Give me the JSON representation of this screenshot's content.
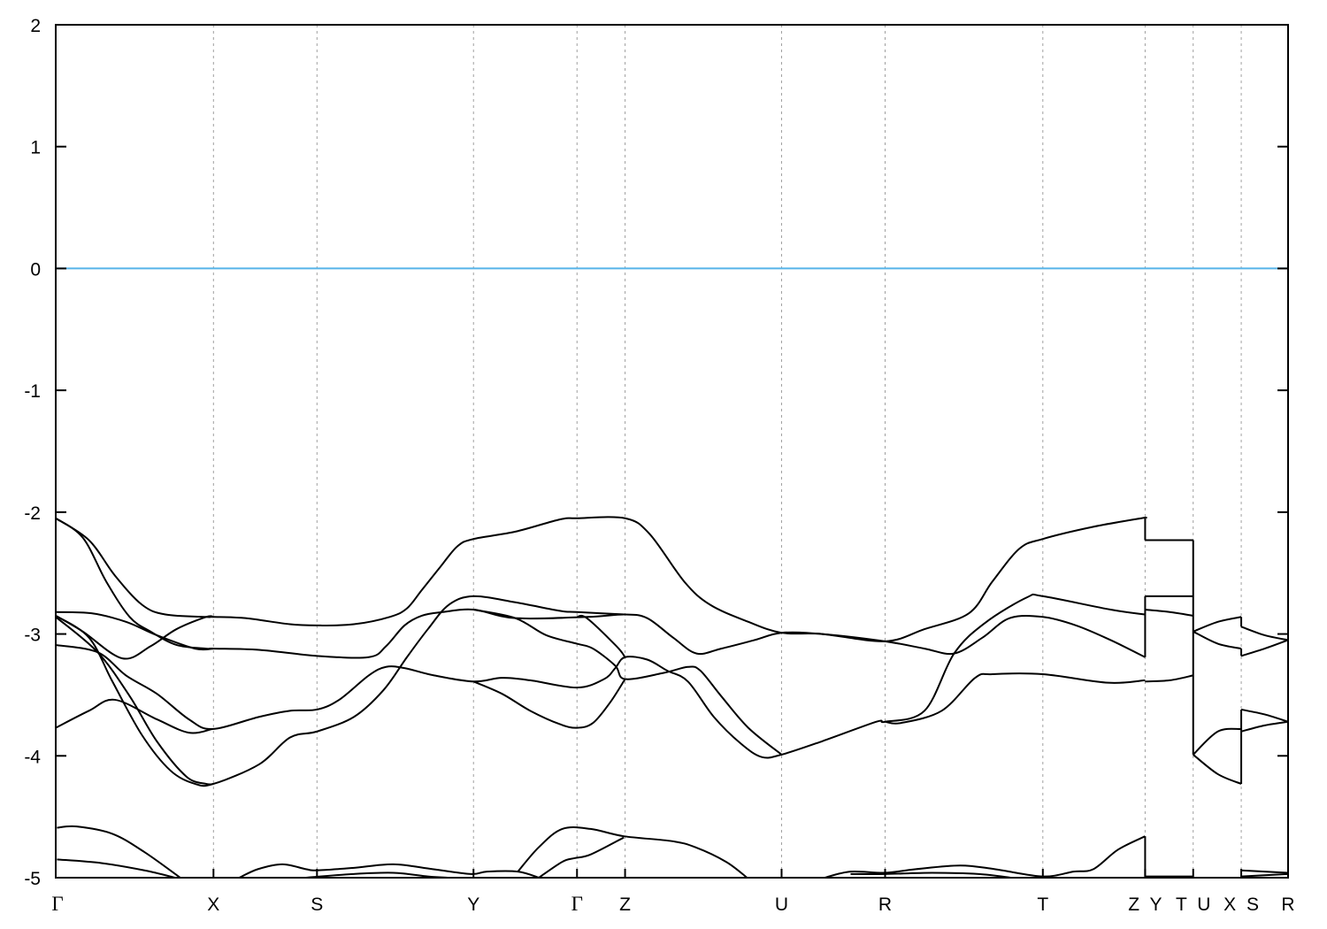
{
  "chart_data": {
    "type": "line",
    "title": "",
    "xlabel": "",
    "ylabel": "",
    "ylim": [
      -5,
      2
    ],
    "xlim": [
      0,
      10
    ],
    "yticks": [
      2,
      1,
      0,
      -1,
      -2,
      -3,
      -4,
      -5
    ],
    "ytick_labels": [
      "2",
      "1",
      "0",
      "-1",
      "-2",
      "-3",
      "-4",
      "-5"
    ],
    "xticks": [
      {
        "k": 0,
        "label": "Γ"
      },
      {
        "k": 1.28,
        "label": "X"
      },
      {
        "k": 2.12,
        "label": "S"
      },
      {
        "k": 3.39,
        "label": "Y"
      },
      {
        "k": 4.23,
        "label": "Γ"
      },
      {
        "k": 4.62,
        "label": "Z"
      },
      {
        "k": 5.89,
        "label": "U"
      },
      {
        "k": 6.73,
        "label": "R"
      },
      {
        "k": 8.01,
        "label": "T"
      },
      {
        "k": 8.84,
        "label": "Z Y"
      },
      {
        "k": 9.23,
        "label": "T U"
      },
      {
        "k": 9.62,
        "label": "X S"
      },
      {
        "k": 10.0,
        "label": "R"
      }
    ],
    "grid": "vertical dashed lines at high-symmetry points",
    "reference_line": {
      "y": 0,
      "color": "#56b4e9"
    },
    "band_color": "#000000",
    "bands": [
      [
        [
          0,
          -2.05
        ],
        [
          0.27,
          -2.23
        ],
        [
          0.48,
          -2.52
        ],
        [
          0.7,
          -2.76
        ],
        [
          0.89,
          -2.84
        ],
        [
          1.22,
          -2.86
        ],
        [
          1.28,
          -2.86
        ],
        [
          1.54,
          -2.87
        ],
        [
          1.9,
          -2.92
        ],
        [
          2.12,
          -2.93
        ],
        [
          2.42,
          -2.92
        ],
        [
          2.71,
          -2.86
        ],
        [
          2.85,
          -2.79
        ],
        [
          2.97,
          -2.64
        ],
        [
          3.12,
          -2.45
        ],
        [
          3.26,
          -2.28
        ],
        [
          3.39,
          -2.22
        ],
        [
          3.73,
          -2.16
        ],
        [
          4.09,
          -2.06
        ],
        [
          4.23,
          -2.05
        ],
        [
          4.62,
          -2.05
        ],
        [
          4.82,
          -2.18
        ],
        [
          5.1,
          -2.57
        ],
        [
          5.31,
          -2.76
        ],
        [
          5.62,
          -2.9
        ],
        [
          5.89,
          -2.99
        ],
        [
          6.22,
          -3.0
        ],
        [
          6.73,
          -3.06
        ],
        [
          7.05,
          -2.96
        ],
        [
          7.41,
          -2.83
        ],
        [
          7.6,
          -2.57
        ],
        [
          7.82,
          -2.3
        ],
        [
          8.01,
          -2.22
        ],
        [
          8.42,
          -2.12
        ],
        [
          8.81,
          -2.05
        ],
        [
          8.84,
          -2.05
        ]
      ],
      [
        [
          0,
          -2.05
        ],
        [
          0.22,
          -2.21
        ],
        [
          0.41,
          -2.57
        ],
        [
          0.6,
          -2.86
        ],
        [
          0.77,
          -2.98
        ],
        [
          0.98,
          -3.09
        ],
        [
          1.22,
          -3.12
        ],
        [
          1.28,
          -3.12
        ],
        [
          1.65,
          -3.13
        ],
        [
          2.12,
          -3.18
        ],
        [
          2.54,
          -3.19
        ],
        [
          2.68,
          -3.1
        ],
        [
          2.83,
          -2.93
        ],
        [
          2.97,
          -2.85
        ],
        [
          3.14,
          -2.82
        ],
        [
          3.39,
          -2.8
        ],
        [
          3.73,
          -2.87
        ],
        [
          4.31,
          -2.86
        ],
        [
          4.62,
          -2.84
        ],
        [
          4.8,
          -2.87
        ],
        [
          5.01,
          -3.03
        ],
        [
          5.2,
          -3.16
        ],
        [
          5.4,
          -3.12
        ],
        [
          5.67,
          -3.05
        ],
        [
          5.89,
          -2.99
        ],
        [
          6.22,
          -3.0
        ],
        [
          6.73,
          -3.06
        ],
        [
          7.05,
          -3.12
        ],
        [
          7.29,
          -3.16
        ],
        [
          7.52,
          -3.03
        ],
        [
          7.74,
          -2.87
        ],
        [
          8.01,
          -2.86
        ],
        [
          8.28,
          -2.93
        ],
        [
          8.56,
          -3.05
        ],
        [
          8.84,
          -3.19
        ]
      ],
      [
        [
          0,
          -2.82
        ],
        [
          0.29,
          -2.83
        ],
        [
          0.57,
          -2.9
        ],
        [
          0.82,
          -3.01
        ],
        [
          1.13,
          -3.12
        ],
        [
          1.28,
          -3.12
        ]
      ],
      [
        [
          0,
          -2.85
        ],
        [
          0.22,
          -2.98
        ],
        [
          0.54,
          -3.2
        ],
        [
          0.77,
          -3.1
        ],
        [
          0.98,
          -2.96
        ],
        [
          1.22,
          -2.86
        ],
        [
          1.28,
          -2.86
        ]
      ],
      [
        [
          0,
          -2.85
        ],
        [
          0.27,
          -3.03
        ],
        [
          0.46,
          -3.39
        ],
        [
          0.7,
          -3.83
        ],
        [
          0.93,
          -4.12
        ],
        [
          1.13,
          -4.23
        ],
        [
          1.28,
          -4.23
        ],
        [
          1.65,
          -4.07
        ],
        [
          1.9,
          -3.85
        ],
        [
          2.12,
          -3.8
        ],
        [
          2.42,
          -3.68
        ],
        [
          2.66,
          -3.46
        ],
        [
          2.85,
          -3.19
        ],
        [
          3.02,
          -2.96
        ],
        [
          3.19,
          -2.76
        ],
        [
          3.39,
          -2.69
        ],
        [
          3.73,
          -2.74
        ],
        [
          4.09,
          -2.81
        ],
        [
          4.23,
          -2.82
        ],
        [
          4.62,
          -2.84
        ]
      ],
      [
        [
          0,
          -2.86
        ],
        [
          0.34,
          -3.15
        ],
        [
          0.6,
          -3.51
        ],
        [
          0.82,
          -3.88
        ],
        [
          1.06,
          -4.17
        ],
        [
          1.22,
          -4.23
        ],
        [
          1.28,
          -4.23
        ]
      ],
      [
        [
          0,
          -3.09
        ],
        [
          0.34,
          -3.15
        ],
        [
          0.57,
          -3.34
        ],
        [
          0.82,
          -3.49
        ],
        [
          1.08,
          -3.7
        ],
        [
          1.27,
          -3.78
        ],
        [
          1.65,
          -3.68
        ],
        [
          1.9,
          -3.63
        ],
        [
          2.12,
          -3.62
        ],
        [
          2.3,
          -3.54
        ],
        [
          2.54,
          -3.34
        ],
        [
          2.68,
          -3.27
        ],
        [
          2.83,
          -3.28
        ],
        [
          3.07,
          -3.34
        ],
        [
          3.39,
          -3.39
        ],
        [
          3.62,
          -3.36
        ],
        [
          3.85,
          -3.38
        ],
        [
          4.23,
          -3.44
        ],
        [
          4.45,
          -3.37
        ],
        [
          4.54,
          -3.28
        ],
        [
          4.62,
          -3.19
        ],
        [
          4.8,
          -3.21
        ],
        [
          4.96,
          -3.3
        ],
        [
          5.13,
          -3.39
        ],
        [
          5.34,
          -3.68
        ],
        [
          5.56,
          -3.9
        ],
        [
          5.73,
          -4.01
        ],
        [
          5.89,
          -3.99
        ],
        [
          6.22,
          -3.88
        ],
        [
          6.66,
          -3.72
        ],
        [
          6.73,
          -3.72
        ],
        [
          7.05,
          -3.63
        ],
        [
          7.29,
          -3.16
        ],
        [
          7.54,
          -2.91
        ],
        [
          7.88,
          -2.7
        ],
        [
          8.01,
          -2.69
        ],
        [
          8.56,
          -2.8
        ],
        [
          8.84,
          -2.84
        ]
      ],
      [
        [
          0,
          -3.77
        ],
        [
          0.27,
          -3.63
        ],
        [
          0.48,
          -3.54
        ],
        [
          0.82,
          -3.7
        ],
        [
          1.08,
          -3.81
        ],
        [
          1.27,
          -3.78
        ]
      ],
      [
        [
          3.39,
          -2.8
        ],
        [
          3.73,
          -2.87
        ],
        [
          3.98,
          -3.01
        ],
        [
          4.23,
          -3.08
        ],
        [
          4.36,
          -3.12
        ],
        [
          4.54,
          -3.26
        ],
        [
          4.62,
          -3.37
        ],
        [
          4.93,
          -3.32
        ],
        [
          5.13,
          -3.27
        ],
        [
          5.23,
          -3.3
        ],
        [
          5.4,
          -3.51
        ],
        [
          5.62,
          -3.77
        ],
        [
          5.89,
          -3.99
        ]
      ],
      [
        [
          3.39,
          -3.39
        ],
        [
          3.62,
          -3.49
        ],
        [
          3.85,
          -3.63
        ],
        [
          4.09,
          -3.74
        ],
        [
          4.23,
          -3.77
        ],
        [
          4.36,
          -3.73
        ],
        [
          4.5,
          -3.56
        ],
        [
          4.62,
          -3.37
        ]
      ],
      [
        [
          4.23,
          -2.86
        ],
        [
          4.31,
          -2.87
        ],
        [
          4.55,
          -3.1
        ],
        [
          4.62,
          -3.19
        ]
      ],
      [
        [
          6.73,
          -3.72
        ],
        [
          6.86,
          -3.73
        ],
        [
          7.19,
          -3.63
        ],
        [
          7.46,
          -3.36
        ],
        [
          7.6,
          -3.33
        ],
        [
          8.01,
          -3.33
        ],
        [
          8.54,
          -3.4
        ],
        [
          8.84,
          -3.38
        ]
      ],
      [
        [
          8.84,
          -2.23
        ],
        [
          9.23,
          -2.23
        ]
      ],
      [
        [
          8.84,
          -2.69
        ],
        [
          9.23,
          -2.69
        ]
      ],
      [
        [
          8.84,
          -2.8
        ],
        [
          9.04,
          -2.82
        ],
        [
          9.23,
          -2.85
        ]
      ],
      [
        [
          8.84,
          -3.39
        ],
        [
          9.04,
          -3.38
        ],
        [
          9.23,
          -3.34
        ]
      ],
      [
        [
          9.23,
          -2.98
        ],
        [
          9.43,
          -2.9
        ],
        [
          9.62,
          -2.86
        ]
      ],
      [
        [
          9.23,
          -2.98
        ],
        [
          9.43,
          -3.08
        ],
        [
          9.62,
          -3.12
        ]
      ],
      [
        [
          9.23,
          -3.99
        ],
        [
          9.43,
          -3.8
        ],
        [
          9.62,
          -3.78
        ]
      ],
      [
        [
          9.23,
          -3.99
        ],
        [
          9.43,
          -4.15
        ],
        [
          9.62,
          -4.23
        ]
      ],
      [
        [
          9.62,
          -2.94
        ],
        [
          9.81,
          -3.01
        ],
        [
          10.0,
          -3.05
        ]
      ],
      [
        [
          9.62,
          -3.18
        ],
        [
          9.81,
          -3.12
        ],
        [
          10.0,
          -3.05
        ]
      ],
      [
        [
          9.62,
          -3.62
        ],
        [
          9.81,
          -3.66
        ],
        [
          10.0,
          -3.72
        ]
      ],
      [
        [
          9.62,
          -3.8
        ],
        [
          9.81,
          -3.75
        ],
        [
          10.0,
          -3.72
        ]
      ],
      [
        [
          0.01,
          -4.59
        ],
        [
          0.17,
          -4.58
        ],
        [
          0.46,
          -4.64
        ],
        [
          0.72,
          -4.79
        ],
        [
          1.01,
          -5.0
        ]
      ],
      [
        [
          0.01,
          -4.85
        ],
        [
          0.37,
          -4.88
        ],
        [
          0.72,
          -4.94
        ],
        [
          0.97,
          -5.0
        ]
      ],
      [
        [
          1.49,
          -5.0
        ],
        [
          1.64,
          -4.93
        ],
        [
          1.84,
          -4.89
        ],
        [
          2.03,
          -4.93
        ],
        [
          2.12,
          -4.94
        ],
        [
          2.41,
          -4.92
        ],
        [
          2.74,
          -4.89
        ],
        [
          3.06,
          -4.93
        ],
        [
          3.37,
          -4.97
        ],
        [
          3.5,
          -4.95
        ],
        [
          3.75,
          -4.95
        ],
        [
          3.92,
          -5.0
        ]
      ],
      [
        [
          2.03,
          -5.0
        ],
        [
          2.41,
          -4.97
        ],
        [
          2.74,
          -4.96
        ],
        [
          3.02,
          -4.99
        ],
        [
          3.18,
          -5.0
        ]
      ],
      [
        [
          3.75,
          -4.95
        ],
        [
          3.92,
          -4.75
        ],
        [
          4.11,
          -4.6
        ],
        [
          4.34,
          -4.6
        ],
        [
          4.61,
          -4.66
        ],
        [
          5.0,
          -4.7
        ],
        [
          5.19,
          -4.75
        ],
        [
          5.44,
          -4.87
        ],
        [
          5.61,
          -5.0
        ]
      ],
      [
        [
          3.92,
          -5.0
        ],
        [
          4.11,
          -4.87
        ],
        [
          4.21,
          -4.84
        ],
        [
          4.34,
          -4.81
        ],
        [
          4.61,
          -4.67
        ]
      ],
      [
        [
          6.24,
          -5.0
        ],
        [
          6.45,
          -4.95
        ],
        [
          6.73,
          -4.96
        ],
        [
          6.98,
          -4.93
        ],
        [
          7.34,
          -4.9
        ],
        [
          7.62,
          -4.93
        ],
        [
          8.01,
          -4.99
        ],
        [
          8.26,
          -4.95
        ],
        [
          8.42,
          -4.93
        ],
        [
          8.62,
          -4.77
        ],
        [
          8.84,
          -4.66
        ]
      ],
      [
        [
          6.45,
          -4.97
        ],
        [
          6.73,
          -4.97
        ],
        [
          7.11,
          -4.96
        ],
        [
          7.49,
          -4.97
        ],
        [
          7.75,
          -5.0
        ]
      ],
      [
        [
          8.84,
          -4.99
        ],
        [
          9.23,
          -4.99
        ]
      ],
      [
        [
          9.62,
          -4.94
        ],
        [
          10.0,
          -4.96
        ]
      ],
      [
        [
          9.62,
          -4.99
        ],
        [
          10.0,
          -4.97
        ]
      ]
    ],
    "jumps": [
      [
        [
          8.84,
          -2.05
        ],
        [
          8.84,
          -2.23
        ]
      ],
      [
        [
          8.84,
          -2.69
        ],
        [
          8.84,
          -3.19
        ]
      ],
      [
        [
          8.84,
          -4.66
        ],
        [
          8.84,
          -4.99
        ]
      ],
      [
        [
          9.23,
          -2.23
        ],
        [
          9.23,
          -3.99
        ]
      ],
      [
        [
          9.62,
          -2.86
        ],
        [
          9.62,
          -2.94
        ]
      ],
      [
        [
          9.62,
          -3.12
        ],
        [
          9.62,
          -3.18
        ]
      ],
      [
        [
          9.62,
          -3.62
        ],
        [
          9.62,
          -4.23
        ]
      ]
    ]
  }
}
